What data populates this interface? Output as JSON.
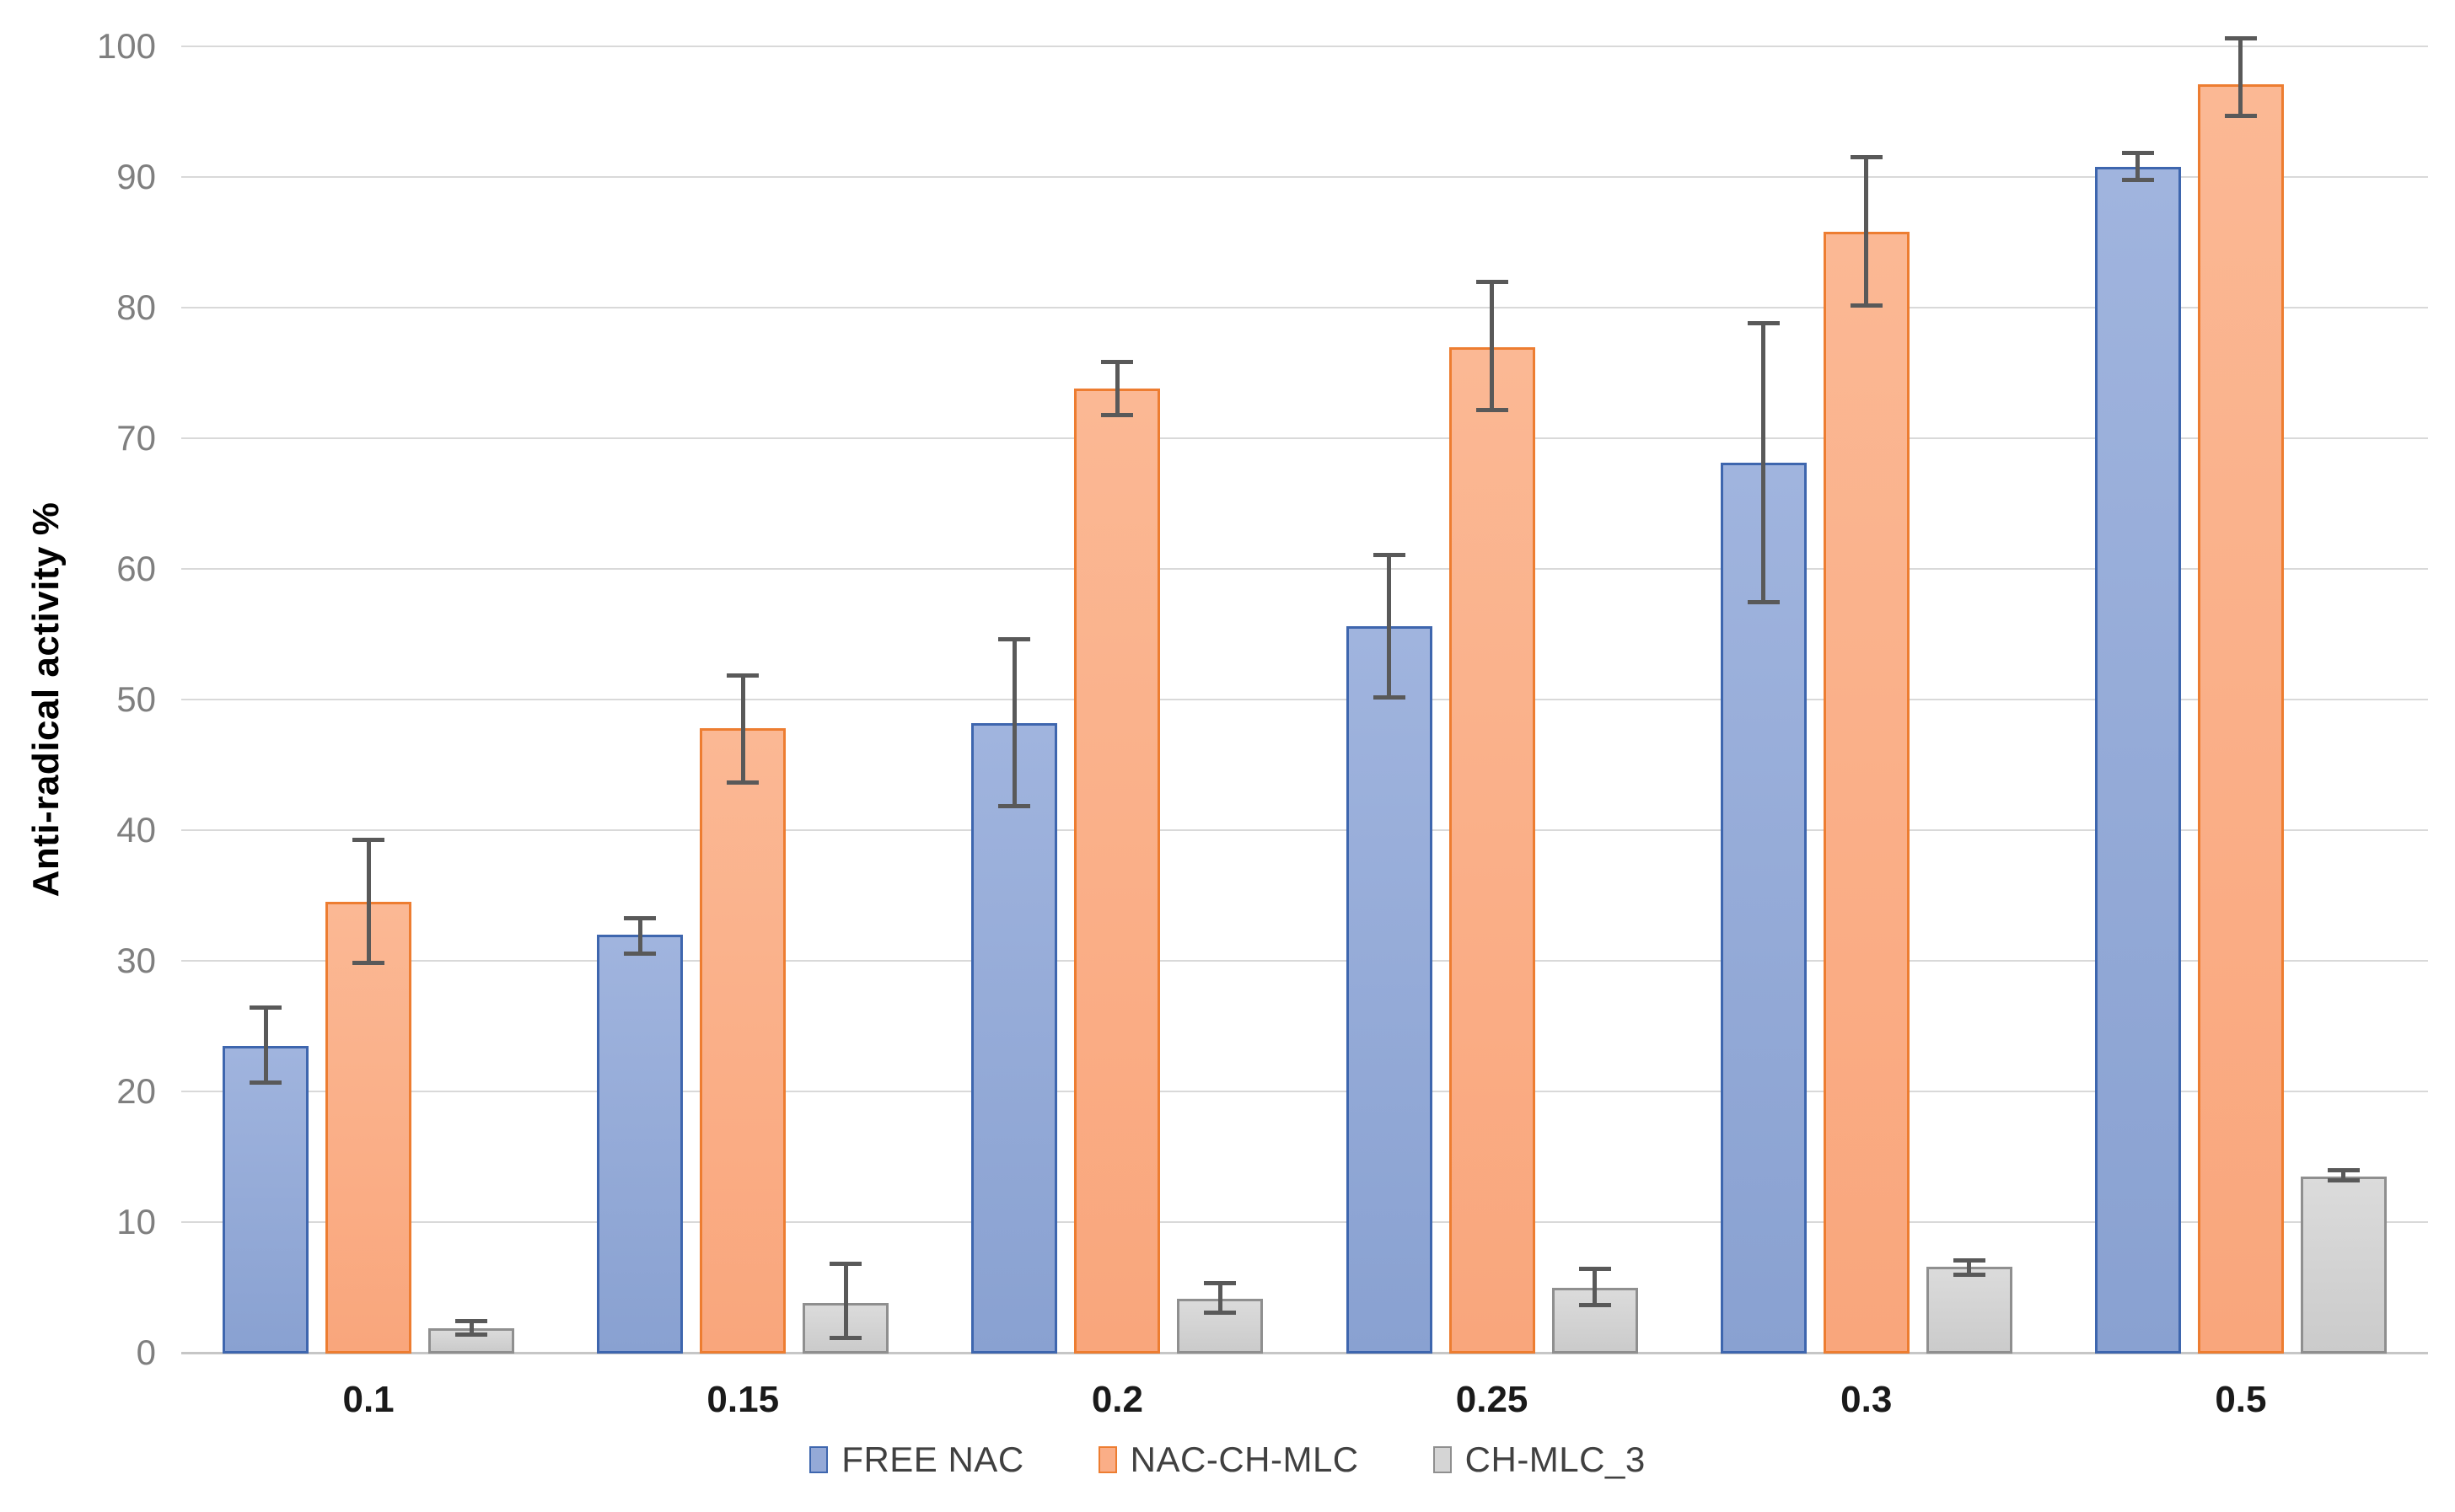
{
  "page": {
    "background": "#ffffff"
  },
  "chart_data": {
    "type": "bar",
    "title": "",
    "xlabel": "",
    "ylabel": "Anti-radical activity %",
    "ylim": [
      0,
      100
    ],
    "yticks": [
      0,
      10,
      20,
      30,
      40,
      50,
      60,
      70,
      80,
      90,
      100
    ],
    "grid": "horizontal",
    "legend_position": "bottom",
    "categories": [
      "0.1",
      "0.15",
      "0.2",
      "0.25",
      "0.3",
      "0.5"
    ],
    "series": [
      {
        "name": "FREE NAC",
        "color": "#94A9D7",
        "fill_top": "#A0B4DE",
        "fill_bottom": "#89A1D1",
        "border": "#3E66AE",
        "values": [
          23.5,
          32.0,
          48.2,
          55.6,
          68.1,
          90.8
        ],
        "error_low": [
          20.5,
          30.4,
          41.7,
          50.0,
          57.3,
          89.6
        ],
        "error_high": [
          26.6,
          33.4,
          54.8,
          61.2,
          79.0,
          92.0
        ]
      },
      {
        "name": "NAC-CH-MLC",
        "color": "#FAAE87",
        "fill_top": "#FBB894",
        "fill_bottom": "#F9A67C",
        "border": "#ED7D31",
        "values": [
          34.5,
          47.8,
          73.8,
          77.0,
          85.8,
          97.1
        ],
        "error_low": [
          29.7,
          43.5,
          71.6,
          72.0,
          80.0,
          94.5
        ],
        "error_high": [
          39.4,
          52.0,
          76.0,
          82.1,
          91.7,
          100.8
        ]
      },
      {
        "name": "CH-MLC_3",
        "color": "#D5D5D5",
        "fill_top": "#DBDBDB",
        "fill_bottom": "#CBCBCB",
        "border": "#8F8F8F",
        "values": [
          1.9,
          3.8,
          4.1,
          5.0,
          6.6,
          13.5
        ],
        "error_low": [
          1.2,
          1.0,
          2.9,
          3.5,
          5.8,
          13.0
        ],
        "error_high": [
          2.6,
          7.0,
          5.5,
          6.6,
          7.2,
          14.1
        ]
      }
    ],
    "error_bar_color": "#595959",
    "gridline_color": "#D9D9D9",
    "axis_line_color": "#C6C6C6",
    "tick_label_color": "#7F7F7F",
    "category_label_color": "#1a1a1a"
  }
}
